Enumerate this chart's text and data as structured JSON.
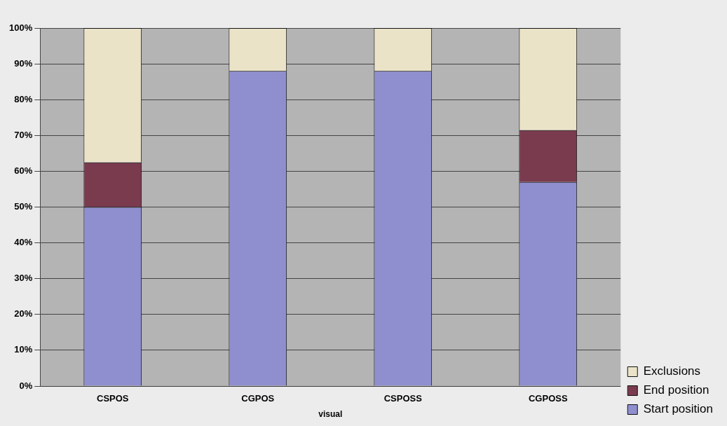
{
  "chart_data": {
    "type": "bar",
    "xlabel": "visual",
    "categories": [
      "CSPOS",
      "CGPOS",
      "CSPOSS",
      "CGPOSS"
    ],
    "series": [
      {
        "name": "Start position",
        "color": "#8f8fcf",
        "values": [
          50,
          88,
          88,
          57
        ]
      },
      {
        "name": "End position",
        "color": "#7a3b4f",
        "values": [
          12.5,
          0,
          0,
          14.5
        ]
      },
      {
        "name": "Exclusions",
        "color": "#ebe3c8",
        "values": [
          37.5,
          12,
          12,
          28.5
        ]
      }
    ],
    "stacked": true,
    "ylim": [
      0,
      100
    ],
    "yticks": [
      {
        "value": 0,
        "label": "0%"
      },
      {
        "value": 10,
        "label": "10%"
      },
      {
        "value": 20,
        "label": "20%"
      },
      {
        "value": 30,
        "label": "30%"
      },
      {
        "value": 40,
        "label": "40%"
      },
      {
        "value": 50,
        "label": "50%"
      },
      {
        "value": 60,
        "label": "60%"
      },
      {
        "value": 70,
        "label": "70%"
      },
      {
        "value": 80,
        "label": "80%"
      },
      {
        "value": 90,
        "label": "90%"
      },
      {
        "value": 100,
        "label": "100%"
      }
    ],
    "grid": "y",
    "legend": "bottom right"
  }
}
